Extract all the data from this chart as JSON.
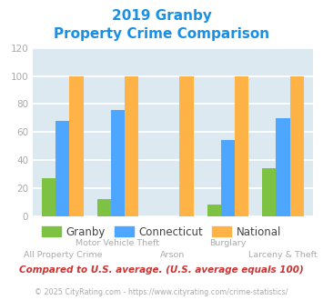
{
  "title_line1": "2019 Granby",
  "title_line2": "Property Crime Comparison",
  "title_color": "#1a8fe3",
  "categories": [
    "All Property Crime",
    "Motor Vehicle Theft",
    "Arson",
    "Burglary",
    "Larceny & Theft"
  ],
  "top_labels": [
    "",
    "Motor Vehicle Theft",
    "",
    "Burglary",
    ""
  ],
  "bottom_labels": [
    "All Property Crime",
    "",
    "Arson",
    "",
    "Larceny & Theft"
  ],
  "granby": [
    27,
    12,
    0,
    8,
    34
  ],
  "connecticut": [
    68,
    76,
    0,
    54,
    70
  ],
  "national": [
    100,
    100,
    100,
    100,
    100
  ],
  "granby_color": "#7dc242",
  "connecticut_color": "#4da6ff",
  "national_color": "#ffb347",
  "bar_width": 0.25,
  "ylim": [
    0,
    120
  ],
  "yticks": [
    0,
    20,
    40,
    60,
    80,
    100,
    120
  ],
  "plot_bg": "#dce9f0",
  "grid_color": "#ffffff",
  "footnote": "Compared to U.S. average. (U.S. average equals 100)",
  "footnote_color": "#cc3333",
  "copyright": "© 2025 CityRating.com - https://www.cityrating.com/crime-statistics/",
  "copyright_color": "#aaaaaa",
  "copyright_link_color": "#4da6ff",
  "legend_labels": [
    "Granby",
    "Connecticut",
    "National"
  ],
  "label_color": "#aaaaaa",
  "tick_color": "#aaaaaa"
}
